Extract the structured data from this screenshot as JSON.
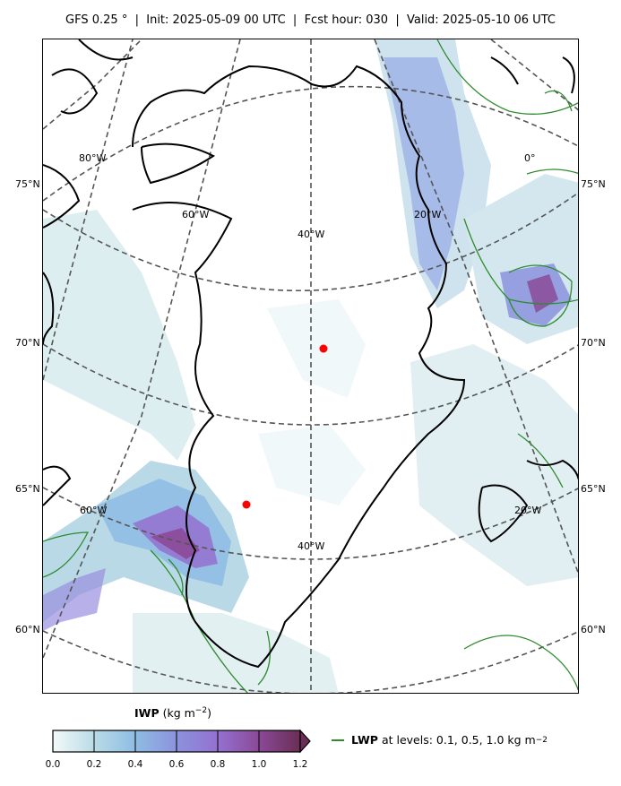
{
  "title": "GFS 0.25 °  |  Init: 2025-05-09 00 UTC  |  Fcst hour: 030  |  Valid: 2025-05-10 06 UTC",
  "map": {
    "lat_labels_left": [
      "75°N",
      "70°N",
      "65°N",
      "60°N"
    ],
    "lat_labels_right": [
      "75°N",
      "70°N",
      "65°N",
      "60°N"
    ],
    "grid_labels": [
      "80°W",
      "60°W",
      "40°W",
      "20°W",
      "0°",
      "60°W",
      "40°W",
      "20°W"
    ],
    "markers": [
      {
        "name": "point-a",
        "color": "#ff0000"
      },
      {
        "name": "point-b",
        "color": "#ff0000"
      }
    ],
    "colors": {
      "coastline": "#000000",
      "lwp_contour": "#2e8b2e",
      "grid": "#555555",
      "marker": "#ff0000"
    }
  },
  "colorbar": {
    "label_bold": "IWP",
    "label_units": "(kg m",
    "label_exp": "−2",
    "label_close": ")",
    "ticks": [
      "0.0",
      "0.2",
      "0.4",
      "0.6",
      "0.8",
      "1.0",
      "1.2"
    ],
    "colors": [
      "#e6f2f3",
      "#b9dbe6",
      "#8fbde3",
      "#8b93dd",
      "#9470d0",
      "#8b4a98",
      "#6a2e55"
    ],
    "extend": "max"
  },
  "legend": {
    "label_bold": "LWP",
    "label_rest": "at levels: 0.1, 0.5, 1.0  kg m",
    "label_exp": "−2"
  }
}
